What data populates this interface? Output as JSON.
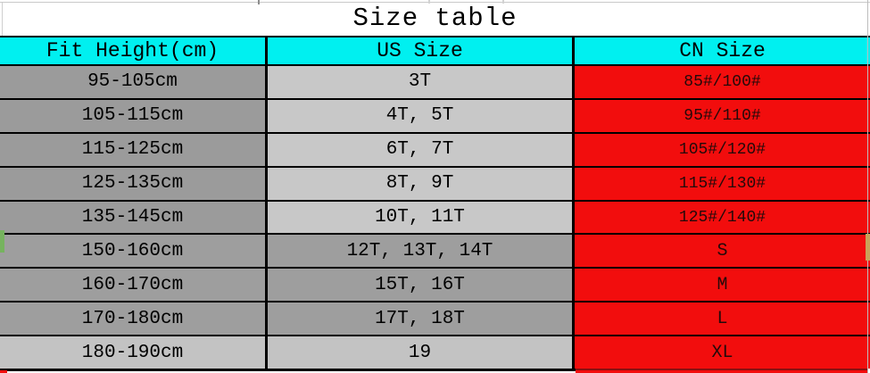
{
  "title": "Size table",
  "chart_data": {
    "type": "table",
    "title": "Size table",
    "columns": [
      "Fit Height(cm)",
      "US Size",
      "CN Size"
    ],
    "rows": [
      [
        "95-105cm",
        "3T",
        "85#/100#"
      ],
      [
        "105-115cm",
        "4T, 5T",
        "95#/110#"
      ],
      [
        "115-125cm",
        "6T, 7T",
        "105#/120#"
      ],
      [
        "125-135cm",
        "8T, 9T",
        "115#/130#"
      ],
      [
        "135-145cm",
        "10T, 11T",
        "125#/140#"
      ],
      [
        "150-160cm",
        "12T, 13T, 14T",
        "S"
      ],
      [
        "160-170cm",
        "15T, 16T",
        "M"
      ],
      [
        "170-180cm",
        "17T, 18T",
        "L"
      ],
      [
        "180-190cm",
        "19",
        "XL"
      ]
    ]
  },
  "row_styles": [
    {
      "shade": "dl",
      "cn_small": true
    },
    {
      "shade": "dl",
      "cn_small": true
    },
    {
      "shade": "dl",
      "cn_small": true
    },
    {
      "shade": "dl",
      "cn_small": true
    },
    {
      "shade": "dl",
      "cn_small": true
    },
    {
      "shade": "dd",
      "cn_small": false
    },
    {
      "shade": "dd",
      "cn_small": false
    },
    {
      "shade": "dd",
      "cn_small": false
    },
    {
      "shade": "ll",
      "cn_small": false
    }
  ],
  "colors": {
    "header_bg": "#00f0f0",
    "cn_bg": "#f20d0d",
    "cn_text": "#230a0a",
    "dark_gray": "#9b9b9b",
    "dark_gray2": "#9e9e9e",
    "light_gray": "#c8c8c8",
    "light_gray2": "#c3c3c3",
    "border": "#000000"
  }
}
